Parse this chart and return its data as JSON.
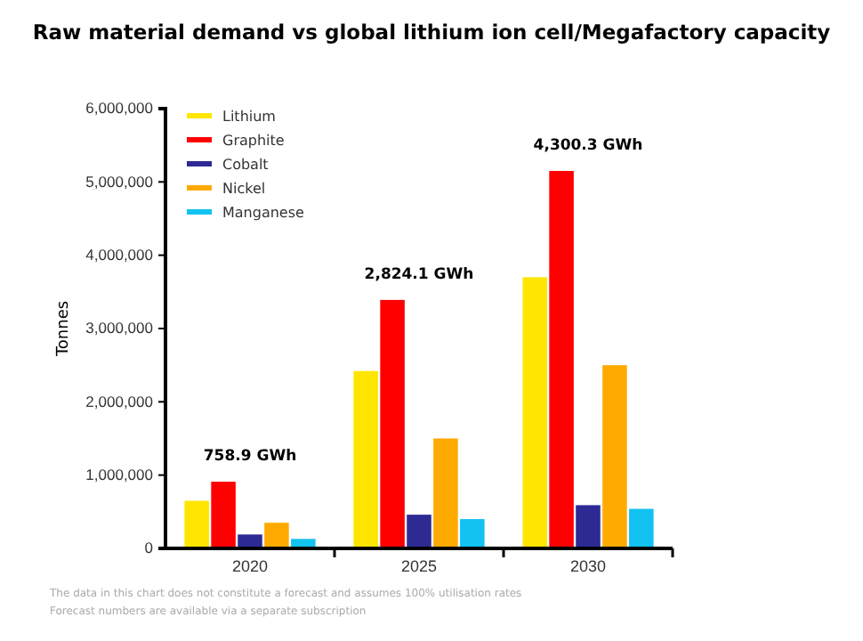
{
  "chart_data": {
    "type": "bar",
    "title": "Raw material demand vs global lithium ion cell/Megafactory capacity",
    "ylabel": "Tonnes",
    "categories": [
      "2020",
      "2025",
      "2030"
    ],
    "series": [
      {
        "name": "Lithium",
        "color": "#ffe600",
        "values": [
          650000,
          2420000,
          3700000
        ]
      },
      {
        "name": "Graphite",
        "color": "#ff0000",
        "values": [
          910000,
          3390000,
          5150000
        ]
      },
      {
        "name": "Cobalt",
        "color": "#2e2a94",
        "values": [
          190000,
          460000,
          590000
        ]
      },
      {
        "name": "Nickel",
        "color": "#ffaa00",
        "values": [
          350000,
          1500000,
          2500000
        ]
      },
      {
        "name": "Manganese",
        "color": "#12c2f0",
        "values": [
          130000,
          400000,
          540000
        ]
      }
    ],
    "ylim": [
      0,
      6000000
    ],
    "yticks": [
      {
        "value": 0,
        "label": "0"
      },
      {
        "value": 1000000,
        "label": "1,000,000"
      },
      {
        "value": 2000000,
        "label": "2,000,000"
      },
      {
        "value": 3000000,
        "label": "3,000,000"
      },
      {
        "value": 4000000,
        "label": "4,000,000"
      },
      {
        "value": 5000000,
        "label": "5,000,000"
      },
      {
        "value": 6000000,
        "label": "6,000,000"
      }
    ],
    "grid": false,
    "legend": "top left",
    "annotations": [
      "758.9 GWh",
      "2,824.1 GWh",
      "4,300.3 GWh",
      "The data in this chart does not constitute a forecast and assumes 100% utilisation rates",
      "Forecast numbers are available via a separate subscription"
    ]
  }
}
